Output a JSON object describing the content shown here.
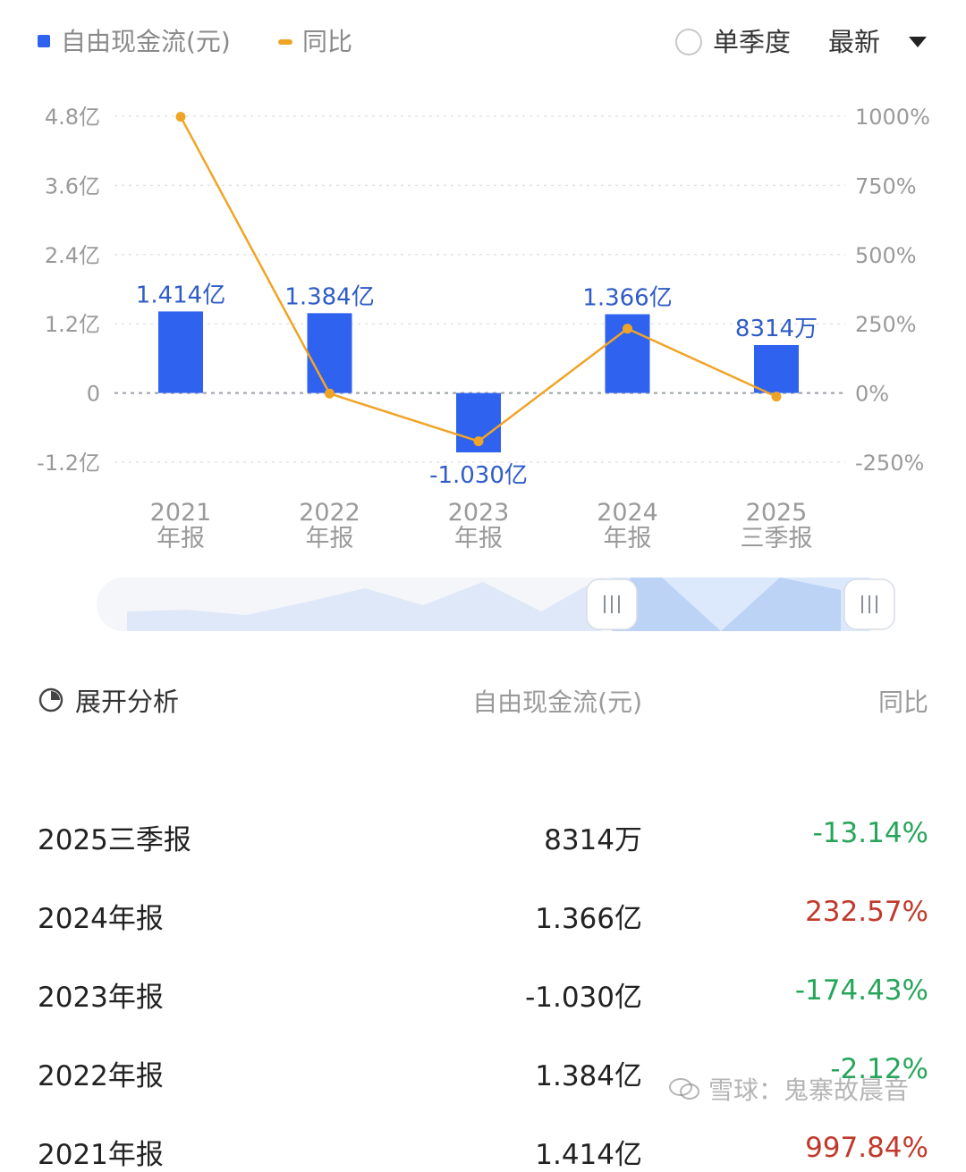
{
  "legend": {
    "bar_label": "自由现金流(元)",
    "line_label": "同比",
    "bar_color": "#2f62ef",
    "line_color": "#f0a427"
  },
  "controls": {
    "single_quarter": "单季度",
    "latest": "最新"
  },
  "chart_data": {
    "type": "bar",
    "categories": [
      "2021\n年报",
      "2022\n年报",
      "2023\n年报",
      "2024\n年报",
      "2025\n三季报"
    ],
    "series": [
      {
        "name": "自由现金流(元)",
        "type": "bar",
        "axis": "left",
        "values": [
          1.414,
          1.384,
          -1.03,
          1.366,
          0.8314
        ],
        "labels": [
          "1.414亿",
          "1.384亿",
          "-1.030亿",
          "1.366亿",
          "8314万"
        ]
      },
      {
        "name": "同比",
        "type": "line",
        "axis": "right",
        "values": [
          997.84,
          -2.12,
          -174.43,
          232.57,
          -13.14
        ]
      }
    ],
    "y_left": {
      "ylim": [
        -1.2,
        4.8
      ],
      "ticks": [
        4.8,
        3.6,
        2.4,
        1.2,
        0,
        -1.2
      ],
      "tick_labels": [
        "4.8亿",
        "3.6亿",
        "2.4亿",
        "1.2亿",
        "0",
        "-1.2亿"
      ]
    },
    "y_right": {
      "ylim": [
        -250,
        1000
      ],
      "ticks": [
        1000,
        750,
        500,
        250,
        0,
        -250
      ],
      "tick_labels": [
        "1000%",
        "750%",
        "500%",
        "250%",
        "0%",
        "-250%"
      ]
    },
    "grid": true,
    "legend_position": "top-left"
  },
  "table": {
    "header": {
      "analysis": "展开分析",
      "value": "自由现金流(元)",
      "yoy": "同比"
    },
    "rows": [
      {
        "period": "2025三季报",
        "value": "8314万",
        "yoy": "-13.14%",
        "yoy_dir": "neg"
      },
      {
        "period": "2024年报",
        "value": "1.366亿",
        "yoy": "232.57%",
        "yoy_dir": "pos"
      },
      {
        "period": "2023年报",
        "value": "-1.030亿",
        "yoy": "-174.43%",
        "yoy_dir": "neg"
      },
      {
        "period": "2022年报",
        "value": "1.384亿",
        "yoy": "-2.12%",
        "yoy_dir": "neg"
      },
      {
        "period": "2021年报",
        "value": "1.414亿",
        "yoy": "997.84%",
        "yoy_dir": "pos"
      }
    ]
  },
  "watermark": "雪球：鬼寨故晨音"
}
